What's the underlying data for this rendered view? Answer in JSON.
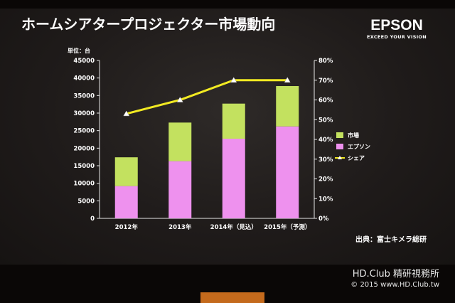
{
  "title": "ホームシアタープロジェクター市場動向",
  "brand": {
    "logo": "EPSON",
    "tagline": "EXCEED YOUR VISION"
  },
  "source": "出典：富士キメラ総研",
  "watermark": {
    "line1": "HD.Club 精研視務所",
    "line2": "© 2015  www.HD.Club.tw"
  },
  "colors": {
    "market": "#c3e15f",
    "epson": "#ee91ee",
    "share": "#f2ea22"
  },
  "chart_data": {
    "type": "bar",
    "stacked": true,
    "unit_label": "単位：台",
    "categories": [
      "2012年",
      "2013年",
      "2014年（見込）",
      "2015年（予測）"
    ],
    "series": [
      {
        "name": "エプソン",
        "values": [
          9200,
          16300,
          22700,
          26200
        ]
      },
      {
        "name": "市場",
        "values": [
          8200,
          11000,
          10000,
          11500
        ]
      }
    ],
    "line_series": {
      "name": "シェア",
      "axis": "right",
      "values": [
        53,
        60,
        70,
        70
      ]
    },
    "ylim_left": [
      0,
      45000
    ],
    "yticks_left": [
      "0",
      "5000",
      "10000",
      "15000",
      "20000",
      "25000",
      "30000",
      "35000",
      "40000",
      "45000"
    ],
    "ylim_right": [
      0,
      80
    ],
    "yticks_right": [
      "0%",
      "10%",
      "20%",
      "30%",
      "40%",
      "50%",
      "60%",
      "70%",
      "80%"
    ],
    "legend_order": [
      "市場",
      "エプソン",
      "シェア"
    ],
    "legend_position": "right",
    "grid": false
  }
}
